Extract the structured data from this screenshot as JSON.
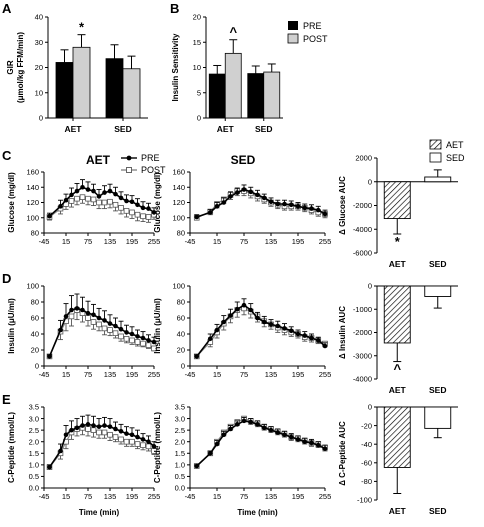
{
  "panel_letters": {
    "A": "A",
    "B": "B",
    "C": "C",
    "D": "D",
    "E": "E"
  },
  "column_titles": {
    "aet": "AET",
    "sed": "SED"
  },
  "time_axis_title": "Time (min)",
  "legend_prepost": {
    "pre": "PRE",
    "post": "POST"
  },
  "legend_groups": {
    "aet": "AET",
    "sed": "SED"
  },
  "chart_data": [
    {
      "id": "A",
      "type": "bar",
      "categories": [
        "AET",
        "SED"
      ],
      "series": [
        {
          "name": "PRE",
          "values": [
            22,
            23.5
          ],
          "sem": [
            5,
            5.5
          ]
        },
        {
          "name": "POST",
          "values": [
            28,
            19.5
          ],
          "sem": [
            5,
            5
          ]
        }
      ],
      "ylabel_lines": [
        "GIR",
        "(μmol/kg FFM/min)"
      ],
      "ylim": [
        0,
        40
      ],
      "yticks": [
        0,
        10,
        20,
        30,
        40
      ],
      "annotations": [
        {
          "text": "*",
          "category": "AET",
          "series": "POST"
        }
      ]
    },
    {
      "id": "B",
      "type": "bar",
      "categories": [
        "AET",
        "SED"
      ],
      "series": [
        {
          "name": "PRE",
          "values": [
            8.7,
            8.8
          ],
          "sem": [
            1.7,
            1.5
          ]
        },
        {
          "name": "POST",
          "values": [
            12.8,
            9.1
          ],
          "sem": [
            2.7,
            1.6
          ]
        }
      ],
      "ylabel_lines": [
        "Insulin Sensitivity"
      ],
      "ylim": [
        0,
        20
      ],
      "yticks": [
        0,
        5,
        10,
        15,
        20
      ],
      "legend": [
        "PRE",
        "POST"
      ],
      "annotations": [
        {
          "text": "^",
          "category": "AET",
          "series": "POST"
        }
      ]
    },
    {
      "id": "C-AET",
      "type": "line",
      "x": [
        -30,
        0,
        15,
        30,
        45,
        60,
        75,
        90,
        105,
        120,
        135,
        150,
        165,
        180,
        195,
        210,
        225,
        240,
        255
      ],
      "series": [
        {
          "name": "PRE",
          "values": [
            102,
            115,
            123,
            130,
            135,
            140,
            137,
            135,
            128,
            133,
            135,
            131,
            126,
            122,
            121,
            117,
            113,
            112,
            107
          ],
          "sem": [
            4,
            8,
            8,
            9,
            10,
            10,
            10,
            9,
            9,
            9,
            9,
            9,
            8,
            8,
            8,
            8,
            8,
            7,
            6
          ]
        },
        {
          "name": "POST",
          "values": [
            101,
            112,
            118,
            122,
            125,
            127,
            125,
            124,
            120,
            120,
            121,
            117,
            113,
            109,
            107,
            104,
            102,
            101,
            104
          ],
          "sem": [
            4,
            7,
            7,
            8,
            8,
            8,
            8,
            8,
            8,
            8,
            8,
            8,
            8,
            8,
            8,
            8,
            7,
            7,
            6
          ]
        }
      ],
      "ylabel": "Glucose (mg/dl)",
      "ylim": [
        80,
        160
      ],
      "yticks": [
        80,
        100,
        120,
        140,
        160
      ],
      "xticks": [
        -45,
        15,
        75,
        135,
        195,
        255
      ]
    },
    {
      "id": "C-SED",
      "type": "line",
      "x": [
        -30,
        0,
        15,
        30,
        45,
        60,
        75,
        90,
        105,
        120,
        135,
        150,
        165,
        180,
        195,
        210,
        225,
        240,
        255
      ],
      "series": [
        {
          "name": "PRE",
          "values": [
            101,
            107,
            115,
            120,
            128,
            133,
            137,
            134,
            130,
            126,
            121,
            118,
            118,
            117,
            115,
            113,
            112,
            110,
            105
          ],
          "sem": [
            3,
            4,
            5,
            6,
            6,
            6,
            6,
            6,
            6,
            5,
            5,
            5,
            5,
            5,
            5,
            5,
            5,
            5,
            5
          ]
        },
        {
          "name": "POST",
          "values": [
            100,
            108,
            118,
            124,
            130,
            135,
            135,
            132,
            128,
            124,
            120,
            117,
            115,
            115,
            115,
            113,
            110,
            107,
            105
          ],
          "sem": [
            3,
            4,
            5,
            5,
            6,
            6,
            6,
            6,
            6,
            5,
            5,
            5,
            5,
            5,
            5,
            5,
            5,
            5,
            5
          ]
        }
      ],
      "ylabel": "Glucose (mg/dl)",
      "ylim": [
        80,
        160
      ],
      "yticks": [
        80,
        100,
        120,
        140,
        160
      ],
      "xticks": [
        -45,
        15,
        75,
        135,
        195,
        255
      ]
    },
    {
      "id": "C-AUC",
      "type": "bar",
      "categories": [
        "AET",
        "SED"
      ],
      "values": [
        -3100,
        400
      ],
      "sem": [
        1300,
        600
      ],
      "patterns": [
        "hatched",
        "open"
      ],
      "ylabel": "Δ Glucose AUC",
      "ylim": [
        -6000,
        2000
      ],
      "yticks": [
        -6000,
        -4000,
        -2000,
        0,
        2000
      ],
      "legend": [
        "AET",
        "SED"
      ],
      "annotations": [
        {
          "text": "*",
          "category": "AET"
        }
      ]
    },
    {
      "id": "D-AET",
      "type": "line",
      "x": [
        -30,
        0,
        15,
        30,
        45,
        60,
        75,
        90,
        105,
        120,
        135,
        150,
        165,
        180,
        195,
        210,
        225,
        240,
        255
      ],
      "series": [
        {
          "name": "PRE",
          "values": [
            12,
            45,
            62,
            70,
            72,
            70,
            66,
            64,
            60,
            57,
            53,
            50,
            46,
            42,
            40,
            37,
            35,
            32,
            30
          ],
          "sem": [
            2,
            12,
            16,
            18,
            18,
            16,
            15,
            13,
            12,
            12,
            11,
            10,
            10,
            9,
            9,
            8,
            8,
            7,
            6
          ]
        },
        {
          "name": "POST",
          "values": [
            12,
            43,
            56,
            62,
            70,
            66,
            60,
            55,
            52,
            47,
            45,
            41,
            37,
            34,
            32,
            30,
            28,
            26,
            22
          ],
          "sem": [
            2,
            10,
            12,
            12,
            12,
            11,
            10,
            9,
            8,
            8,
            7,
            6,
            6,
            5,
            5,
            5,
            4,
            4,
            3
          ]
        }
      ],
      "ylabel": "Insulin (μU/ml)",
      "ylim": [
        0,
        100
      ],
      "yticks": [
        0,
        20,
        40,
        60,
        80,
        100
      ],
      "xticks": [
        -45,
        15,
        75,
        135,
        195,
        255
      ]
    },
    {
      "id": "D-SED",
      "type": "line",
      "x": [
        -30,
        0,
        15,
        30,
        45,
        60,
        75,
        90,
        105,
        120,
        135,
        150,
        165,
        180,
        195,
        210,
        225,
        240,
        255
      ],
      "series": [
        {
          "name": "PRE",
          "values": [
            12,
            34,
            45,
            55,
            63,
            71,
            76,
            70,
            60,
            55,
            52,
            50,
            47,
            44,
            40,
            38,
            35,
            32,
            25
          ],
          "sem": [
            2,
            6,
            7,
            8,
            8,
            9,
            8,
            8,
            7,
            7,
            6,
            6,
            6,
            5,
            5,
            5,
            5,
            4,
            4
          ]
        },
        {
          "name": "POST",
          "values": [
            12,
            30,
            42,
            53,
            62,
            70,
            72,
            68,
            62,
            56,
            52,
            48,
            45,
            42,
            40,
            36,
            35,
            32,
            28
          ],
          "sem": [
            2,
            6,
            7,
            8,
            8,
            9,
            8,
            8,
            7,
            7,
            6,
            6,
            6,
            5,
            5,
            5,
            5,
            4,
            4
          ]
        }
      ],
      "ylabel": "Insulin (μU/ml)",
      "ylim": [
        0,
        100
      ],
      "yticks": [
        0,
        20,
        40,
        60,
        80,
        100
      ],
      "xticks": [
        -45,
        15,
        75,
        135,
        195,
        255
      ]
    },
    {
      "id": "D-AUC",
      "type": "bar",
      "categories": [
        "AET",
        "SED"
      ],
      "values": [
        -2450,
        -450
      ],
      "sem": [
        800,
        500
      ],
      "patterns": [
        "hatched",
        "open"
      ],
      "ylabel": "Δ Insulin AUC",
      "ylim": [
        -4000,
        0
      ],
      "yticks": [
        -4000,
        -3000,
        -2000,
        -1000,
        0
      ],
      "annotations": [
        {
          "text": "^",
          "category": "AET"
        }
      ]
    },
    {
      "id": "E-AET",
      "type": "line",
      "x": [
        -30,
        0,
        15,
        30,
        45,
        60,
        75,
        90,
        105,
        120,
        135,
        150,
        165,
        180,
        195,
        210,
        225,
        240,
        255
      ],
      "series": [
        {
          "name": "PRE",
          "values": [
            0.9,
            1.6,
            2.3,
            2.5,
            2.6,
            2.7,
            2.75,
            2.7,
            2.65,
            2.7,
            2.65,
            2.55,
            2.45,
            2.35,
            2.3,
            2.2,
            2.1,
            2.0,
            1.8
          ],
          "sem": [
            0.1,
            0.3,
            0.4,
            0.4,
            0.4,
            0.4,
            0.4,
            0.4,
            0.35,
            0.35,
            0.35,
            0.3,
            0.3,
            0.3,
            0.3,
            0.3,
            0.25,
            0.25,
            0.2
          ]
        },
        {
          "name": "POST",
          "values": [
            0.9,
            1.5,
            2.0,
            2.4,
            2.55,
            2.6,
            2.55,
            2.5,
            2.4,
            2.4,
            2.3,
            2.2,
            2.1,
            2.0,
            2.0,
            1.9,
            1.85,
            1.8,
            1.6
          ],
          "sem": [
            0.1,
            0.25,
            0.3,
            0.3,
            0.3,
            0.3,
            0.3,
            0.3,
            0.25,
            0.25,
            0.25,
            0.2,
            0.2,
            0.2,
            0.2,
            0.2,
            0.2,
            0.2,
            0.15
          ]
        }
      ],
      "ylabel": "C-Peptide (nmol/L)",
      "ylim": [
        0,
        3.5
      ],
      "yticks": [
        0,
        0.5,
        1.0,
        1.5,
        2.0,
        2.5,
        3.0,
        3.5
      ],
      "xticks": [
        -45,
        15,
        75,
        135,
        195,
        255
      ],
      "xlabel": "Time (min)"
    },
    {
      "id": "E-SED",
      "type": "line",
      "x": [
        -30,
        0,
        15,
        30,
        45,
        60,
        75,
        90,
        105,
        120,
        135,
        150,
        165,
        180,
        195,
        210,
        225,
        240,
        255
      ],
      "series": [
        {
          "name": "PRE",
          "values": [
            0.95,
            1.5,
            1.9,
            2.3,
            2.55,
            2.75,
            2.9,
            2.85,
            2.75,
            2.6,
            2.5,
            2.4,
            2.3,
            2.2,
            2.1,
            2.0,
            1.95,
            1.85,
            1.7
          ],
          "sem": [
            0.05,
            0.1,
            0.15,
            0.15,
            0.15,
            0.15,
            0.15,
            0.15,
            0.15,
            0.15,
            0.15,
            0.15,
            0.15,
            0.15,
            0.15,
            0.15,
            0.15,
            0.15,
            0.15
          ]
        },
        {
          "name": "POST",
          "values": [
            0.95,
            1.5,
            2.0,
            2.4,
            2.65,
            2.85,
            3.0,
            2.9,
            2.8,
            2.65,
            2.55,
            2.45,
            2.35,
            2.2,
            2.15,
            2.05,
            1.95,
            1.9,
            1.75
          ],
          "sem": [
            0.05,
            0.1,
            0.15,
            0.15,
            0.15,
            0.15,
            0.15,
            0.15,
            0.15,
            0.15,
            0.15,
            0.15,
            0.15,
            0.15,
            0.15,
            0.15,
            0.15,
            0.15,
            0.15
          ]
        }
      ],
      "ylabel": "C-Peptide (nmol/L)",
      "ylim": [
        0,
        3.5
      ],
      "yticks": [
        0,
        0.5,
        1.0,
        1.5,
        2.0,
        2.5,
        3.0,
        3.5
      ],
      "xticks": [
        -45,
        15,
        75,
        135,
        195,
        255
      ],
      "xlabel": "Time (min)"
    },
    {
      "id": "E-AUC",
      "type": "bar",
      "categories": [
        "AET",
        "SED"
      ],
      "values": [
        -65,
        -23
      ],
      "sem": [
        28,
        10
      ],
      "patterns": [
        "hatched",
        "open"
      ],
      "ylabel": "Δ C-Peptide AUC",
      "ylim": [
        -100,
        0
      ],
      "yticks": [
        -100,
        -80,
        -60,
        -40,
        -20,
        0
      ]
    }
  ]
}
